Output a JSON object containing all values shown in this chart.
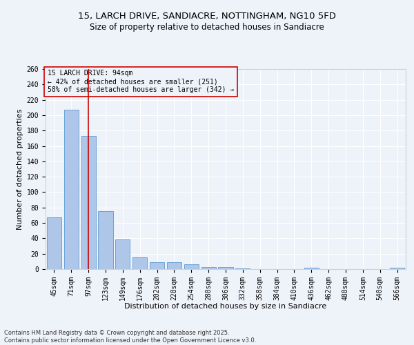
{
  "title_line1": "15, LARCH DRIVE, SANDIACRE, NOTTINGHAM, NG10 5FD",
  "title_line2": "Size of property relative to detached houses in Sandiacre",
  "xlabel": "Distribution of detached houses by size in Sandiacre",
  "ylabel": "Number of detached properties",
  "categories": [
    "45sqm",
    "71sqm",
    "97sqm",
    "123sqm",
    "149sqm",
    "176sqm",
    "202sqm",
    "228sqm",
    "254sqm",
    "280sqm",
    "306sqm",
    "332sqm",
    "358sqm",
    "384sqm",
    "410sqm",
    "436sqm",
    "462sqm",
    "488sqm",
    "514sqm",
    "540sqm",
    "566sqm"
  ],
  "values": [
    67,
    207,
    173,
    75,
    39,
    15,
    9,
    9,
    6,
    3,
    3,
    1,
    0,
    0,
    0,
    2,
    0,
    0,
    0,
    0,
    2
  ],
  "bar_color": "#aec6e8",
  "bar_edgecolor": "#5b9bd5",
  "vline_x": 2,
  "vline_color": "#cc0000",
  "annotation_text": "15 LARCH DRIVE: 94sqm\n← 42% of detached houses are smaller (251)\n58% of semi-detached houses are larger (342) →",
  "annotation_box_edgecolor": "#cc0000",
  "annotation_fontsize": 7,
  "ylim": [
    0,
    260
  ],
  "yticks": [
    0,
    20,
    40,
    60,
    80,
    100,
    120,
    140,
    160,
    180,
    200,
    220,
    240,
    260
  ],
  "background_color": "#eef2f9",
  "grid_color": "#ffffff",
  "title_fontsize": 9.5,
  "subtitle_fontsize": 8.5,
  "axis_label_fontsize": 8,
  "tick_fontsize": 7,
  "footer_text": "Contains HM Land Registry data © Crown copyright and database right 2025.\nContains public sector information licensed under the Open Government Licence v3.0.",
  "footer_fontsize": 6
}
